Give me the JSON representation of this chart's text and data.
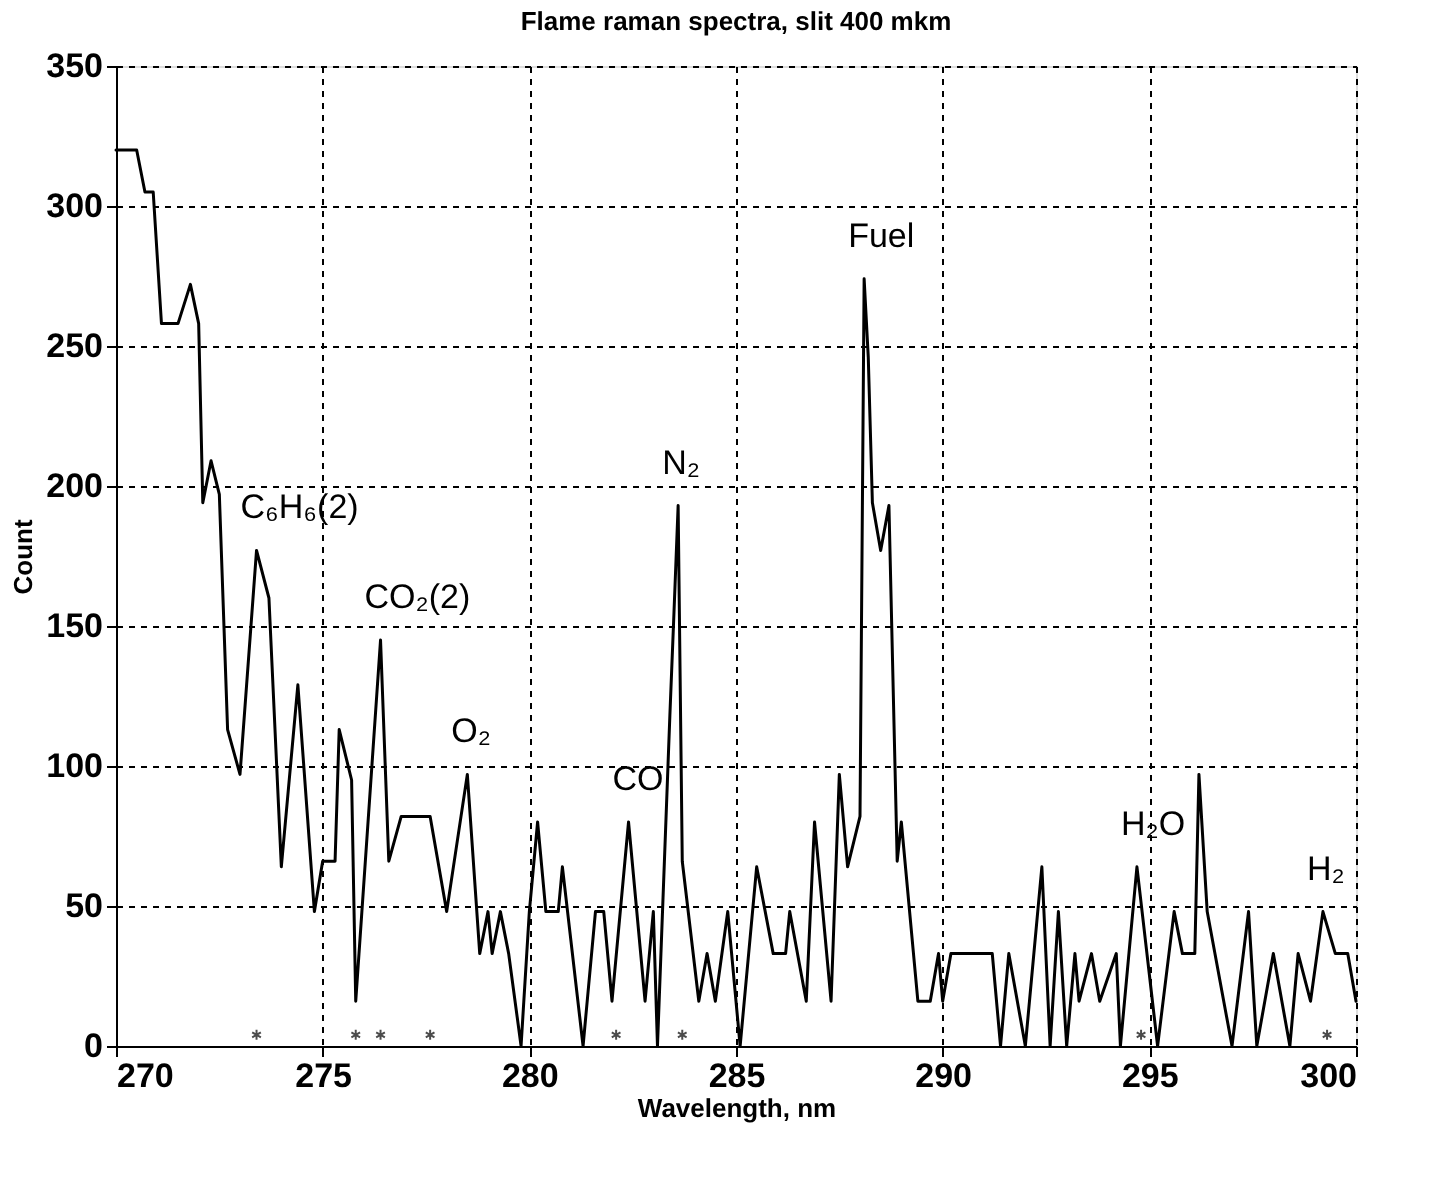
{
  "chart_data": {
    "type": "line",
    "title": "Flame raman spectra, slit 400 mkm",
    "xlabel": "Wavelength,  nm",
    "ylabel": "Count",
    "x": [
      270.0,
      270.5,
      270.7,
      270.9,
      271.1,
      271.5,
      271.8,
      272.0,
      272.1,
      272.3,
      272.5,
      272.7,
      273.0,
      273.4,
      273.7,
      274.0,
      274.4,
      274.8,
      275.0,
      275.3,
      275.4,
      275.7,
      275.8,
      276.4,
      276.6,
      276.9,
      277.6,
      278.0,
      278.5,
      278.8,
      279.0,
      279.1,
      279.3,
      279.5,
      279.8,
      280.0,
      280.2,
      280.4,
      280.7,
      280.8,
      281.3,
      281.6,
      281.8,
      282.0,
      282.4,
      282.8,
      283.0,
      283.1,
      283.4,
      283.5,
      283.6,
      283.7,
      284.1,
      284.3,
      284.5,
      284.8,
      285.1,
      285.5,
      285.9,
      286.2,
      286.3,
      286.7,
      286.9,
      287.3,
      287.5,
      287.7,
      288.0,
      288.1,
      288.2,
      288.3,
      288.5,
      288.7,
      288.9,
      289.0,
      289.4,
      289.7,
      289.9,
      290.0,
      290.2,
      290.5,
      291.2,
      291.4,
      291.6,
      292.0,
      292.4,
      292.6,
      292.8,
      293.0,
      293.2,
      293.3,
      293.6,
      293.8,
      294.2,
      294.3,
      294.7,
      295.2,
      295.6,
      295.8,
      296.1,
      296.2,
      296.4,
      297.0,
      297.4,
      297.6,
      298.0,
      298.4,
      298.6,
      298.9,
      299.2,
      299.5,
      299.8,
      300.0
    ],
    "series": [
      {
        "color": "#000000",
        "values": [
          320,
          320,
          305,
          305,
          258,
          258,
          272,
          258,
          194,
          209,
          197,
          113,
          97,
          177,
          160,
          64,
          129,
          48,
          66,
          66,
          113,
          95,
          16,
          145,
          66,
          82,
          82,
          48,
          97,
          33,
          48,
          33,
          48,
          33,
          0,
          48,
          80,
          48,
          48,
          64,
          0,
          48,
          48,
          16,
          80,
          16,
          48,
          0,
          118,
          155,
          193,
          66,
          16,
          33,
          16,
          48,
          0,
          64,
          33,
          33,
          48,
          16,
          80,
          16,
          97,
          64,
          82,
          274,
          246,
          194,
          177,
          193,
          66,
          80,
          16,
          16,
          33,
          16,
          33,
          33,
          33,
          0,
          33,
          0,
          64,
          0,
          48,
          0,
          33,
          16,
          33,
          16,
          33,
          0,
          64,
          0,
          48,
          33,
          33,
          97,
          48,
          0,
          48,
          0,
          33,
          0,
          33,
          16,
          48,
          33,
          33,
          16
        ]
      },
      {
        "type": "scatter",
        "marker": "cross",
        "color": "#000000",
        "x": [
          273.4,
          275.8,
          276.4,
          277.6,
          282.1,
          283.7,
          294.8,
          299.3
        ],
        "values": [
          4,
          4,
          4,
          4,
          4,
          4,
          4,
          4
        ]
      }
    ],
    "xlim": [
      270,
      300
    ],
    "xticks": [
      270,
      275,
      280,
      285,
      290,
      295,
      300
    ],
    "ylim": [
      0,
      350
    ],
    "yticks": [
      0,
      50,
      100,
      150,
      200,
      250,
      300,
      350
    ],
    "grid": true,
    "marker": "none",
    "line_style": "solid",
    "annotations": [
      {
        "text": "C₆H₆(2)",
        "x": 273.4,
        "y": 177
      },
      {
        "text": "CO₂(2)",
        "x": 276.4,
        "y": 145
      },
      {
        "text": "O₂",
        "x": 278.5,
        "y": 97
      },
      {
        "text": "CO",
        "x": 282.4,
        "y": 80
      },
      {
        "text": "N₂",
        "x": 283.6,
        "y": 193
      },
      {
        "text": "Fuel",
        "x": 288.1,
        "y": 274
      },
      {
        "text": "H₂O",
        "x": 294.7,
        "y": 64
      },
      {
        "text": "H₂",
        "x": 299.2,
        "y": 48
      }
    ]
  }
}
